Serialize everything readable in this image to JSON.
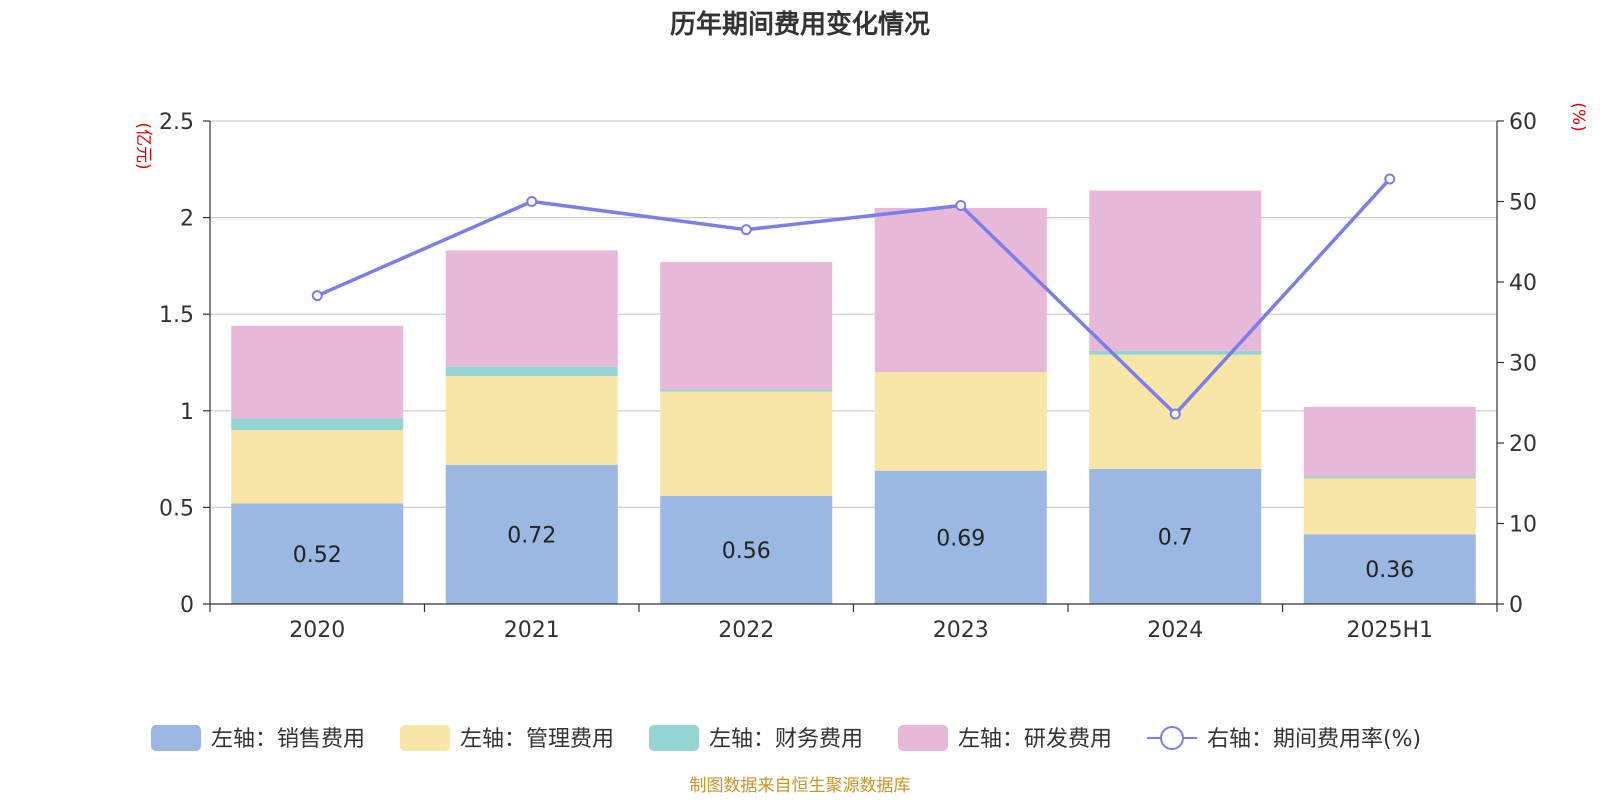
{
  "title": "历年期间费用变化情况",
  "source_note": "制图数据来自恒生聚源数据库",
  "colors": {
    "sales": "#9bb8e2",
    "admin": "#f7e6a6",
    "finance": "#96d3d3",
    "rnd": "#e8b8d9",
    "rate": "#7b7ded",
    "unit": "#e00000",
    "source": "#c8962a",
    "grid": "#cccccc",
    "axis": "#333333"
  },
  "chart_data": {
    "type": "bar",
    "stacked": true,
    "title": "历年期间费用变化情况",
    "categories": [
      "2020",
      "2021",
      "2022",
      "2023",
      "2024",
      "2025H1"
    ],
    "y_left": {
      "unit": "(亿元)",
      "lim": [
        0,
        2.5
      ],
      "ticks": [
        "0",
        "0.5",
        "1",
        "1.5",
        "2",
        "2.5"
      ]
    },
    "y_right": {
      "unit": "(%)",
      "lim": [
        0,
        60
      ],
      "ticks": [
        "0",
        "10",
        "20",
        "30",
        "40",
        "50",
        "60"
      ]
    },
    "grid": true,
    "legend_position": "bottom",
    "series": [
      {
        "key": "sales",
        "name": "左轴：销售费用",
        "axis": "left",
        "type": "bar",
        "values": [
          0.52,
          0.72,
          0.56,
          0.69,
          0.7,
          0.36
        ],
        "labels": [
          "0.52",
          "0.72",
          "0.56",
          "0.69",
          "0.7",
          "0.36"
        ]
      },
      {
        "key": "admin",
        "name": "左轴：管理费用",
        "axis": "left",
        "type": "bar",
        "values": [
          0.38,
          0.46,
          0.54,
          0.51,
          0.59,
          0.29
        ]
      },
      {
        "key": "finance",
        "name": "左轴：财务费用",
        "axis": "left",
        "type": "bar",
        "values": [
          0.06,
          0.05,
          0.01,
          0.0,
          0.02,
          0.01
        ]
      },
      {
        "key": "rnd",
        "name": "左轴：研发费用",
        "axis": "left",
        "type": "bar",
        "values": [
          0.48,
          0.6,
          0.66,
          0.85,
          0.83,
          0.36
        ]
      },
      {
        "key": "rate",
        "name": "右轴：期间费用率(%)",
        "axis": "right",
        "type": "line",
        "values": [
          38.3,
          50.0,
          46.5,
          49.5,
          23.6,
          52.8
        ]
      }
    ]
  }
}
